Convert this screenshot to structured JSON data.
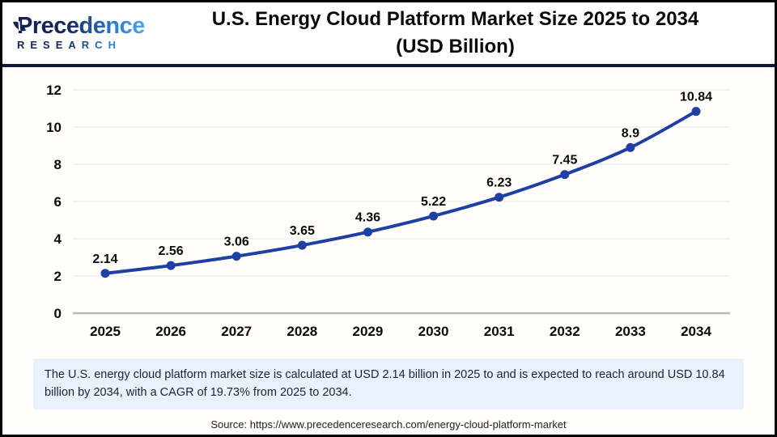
{
  "header": {
    "brand": "Precedence",
    "brand_sub": "RESEARCH",
    "title_line1": "U.S. Energy Cloud Platform Market Size 2025 to 2034",
    "title_line2": "(USD Billion)"
  },
  "chart_data": {
    "type": "line",
    "title": "U.S. Energy Cloud Platform Market Size 2025 to 2034 (USD Billion)",
    "categories": [
      "2025",
      "2026",
      "2027",
      "2028",
      "2029",
      "2030",
      "2031",
      "2032",
      "2033",
      "2034"
    ],
    "values": [
      2.14,
      2.56,
      3.06,
      3.65,
      4.36,
      5.22,
      6.23,
      7.45,
      8.9,
      10.84
    ],
    "data_labels": [
      "2.14",
      "2.56",
      "3.06",
      "3.65",
      "4.36",
      "5.22",
      "6.23",
      "7.45",
      "8.9",
      "10.84"
    ],
    "y_ticks": [
      0,
      2,
      4,
      6,
      8,
      10,
      12
    ],
    "ylim": [
      0,
      12
    ],
    "xlabel": "",
    "ylabel": "",
    "grid": true,
    "legend": "none",
    "line_color": "#1e40a5",
    "marker_color": "#1e40a5",
    "grid_color": "#eeeeec",
    "axis_line_color": "#b5b5b5",
    "label_color": "#0a0a0a"
  },
  "footer": {
    "summary": "The U.S. energy cloud platform market size is calculated at USD 2.14 billion in 2025 to and is expected to reach around USD 10.84 billion by 2034, with a CAGR of 19.73% from 2025 to 2034.",
    "source": "Source: https://www.precedenceresearch.com/energy-cloud-platform-market"
  }
}
